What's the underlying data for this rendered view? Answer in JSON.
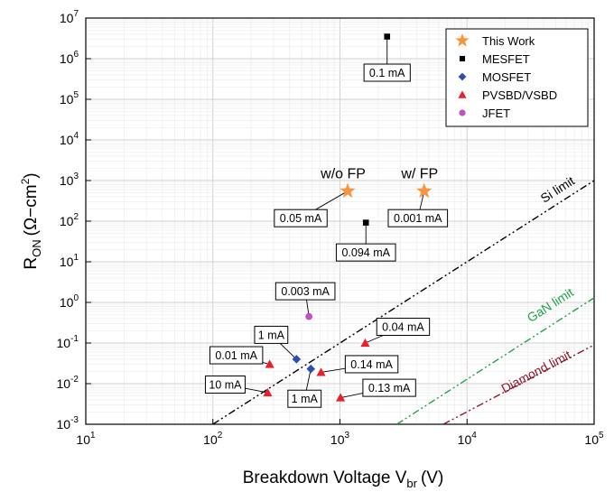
{
  "chart_data": {
    "type": "scatter",
    "xlabel": "Breakdown Voltage V",
    "xlabel_sub": "br",
    "xlabel_unit": "(V)",
    "ylabel_main": "R",
    "ylabel_sub": "ON",
    "ylabel_unit": "(Ω−cm",
    "ylabel_sup": "2",
    "ylabel_close": ")",
    "x_scale": "log",
    "y_scale": "log",
    "xlim": [
      10,
      100000
    ],
    "ylim": [
      0.001,
      10000000
    ],
    "x_ticks": [
      {
        "value": 10,
        "base": "10",
        "exp": "1"
      },
      {
        "value": 100,
        "base": "10",
        "exp": "2"
      },
      {
        "value": 1000,
        "base": "10",
        "exp": "3"
      },
      {
        "value": 10000,
        "base": "10",
        "exp": "4"
      },
      {
        "value": 100000,
        "base": "10",
        "exp": "5"
      }
    ],
    "y_ticks": [
      {
        "value": 0.001,
        "base": "10",
        "exp": "-3"
      },
      {
        "value": 0.01,
        "base": "10",
        "exp": "-2"
      },
      {
        "value": 0.1,
        "base": "10",
        "exp": "-1"
      },
      {
        "value": 1,
        "base": "10",
        "exp": "0"
      },
      {
        "value": 10,
        "base": "10",
        "exp": "1"
      },
      {
        "value": 100,
        "base": "10",
        "exp": "2"
      },
      {
        "value": 1000,
        "base": "10",
        "exp": "3"
      },
      {
        "value": 10000,
        "base": "10",
        "exp": "4"
      },
      {
        "value": 100000,
        "base": "10",
        "exp": "5"
      },
      {
        "value": 1000000,
        "base": "10",
        "exp": "6"
      },
      {
        "value": 10000000,
        "base": "10",
        "exp": "7"
      }
    ],
    "grid": true,
    "legend_position": "top-right",
    "series": [
      {
        "name": "This Work",
        "marker": "star",
        "color": "#f7943c",
        "points": [
          {
            "x": 1150,
            "y": 550,
            "label": "0.05 mA"
          },
          {
            "x": 4600,
            "y": 550,
            "label": "0.001 mA"
          }
        ]
      },
      {
        "name": "MESFET",
        "marker": "square",
        "color": "#000000",
        "points": [
          {
            "x": 2350,
            "y": 3500000,
            "label": "0.1 mA"
          },
          {
            "x": 1600,
            "y": 92,
            "label": "0.094 mA"
          }
        ]
      },
      {
        "name": "MOSFET",
        "marker": "diamond",
        "color": "#2f4fb0",
        "points": [
          {
            "x": 455,
            "y": 0.04,
            "label": "1 mA"
          },
          {
            "x": 590,
            "y": 0.023,
            "label": "1 mA"
          }
        ]
      },
      {
        "name": "PVSBD/VSBD",
        "marker": "triangle",
        "color": "#e8202a",
        "points": [
          {
            "x": 1580,
            "y": 0.1,
            "label": "0.04 mA"
          },
          {
            "x": 280,
            "y": 0.03,
            "label": "0.01 mA"
          },
          {
            "x": 710,
            "y": 0.019,
            "label": "0.14 mA"
          },
          {
            "x": 270,
            "y": 0.006,
            "label": "10 mA"
          },
          {
            "x": 1010,
            "y": 0.0045,
            "label": "0.13 mA"
          }
        ]
      },
      {
        "name": "JFET",
        "marker": "circle",
        "color": "#c04fc0",
        "points": [
          {
            "x": 570,
            "y": 0.45,
            "label": "0.003 mA"
          }
        ]
      }
    ],
    "annotations": [
      {
        "text": "w/o FP",
        "x": 1150,
        "y": 550
      },
      {
        "text": "w/ FP",
        "x": 4600,
        "y": 550
      }
    ],
    "limit_lines": [
      {
        "name": "Si limit",
        "color": "#000000",
        "x0": 100,
        "y0": 0.001,
        "x1": 100000,
        "y1": 1000
      },
      {
        "name": "GaN limit",
        "color": "#1fa34a",
        "x0": 2800,
        "y0": 0.001,
        "x1": 100000,
        "y1": 1.3
      },
      {
        "name": "Diamond limit",
        "color": "#8b1a2e",
        "x0": 6500,
        "y0": 0.001,
        "x1": 100000,
        "y1": 0.09
      }
    ]
  }
}
